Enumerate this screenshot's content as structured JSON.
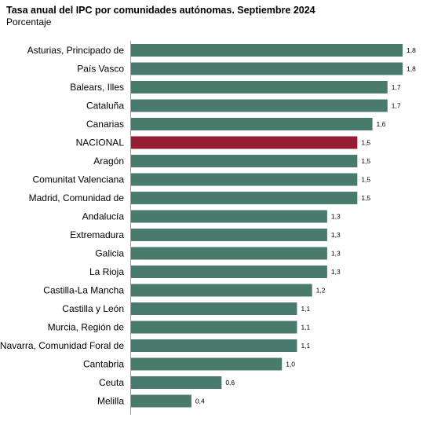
{
  "chart_data": {
    "type": "bar",
    "orientation": "horizontal",
    "title": "Tasa anual del IPC por comunidades autónomas. Septiembre 2024",
    "subtitle": "Porcentaje",
    "xlabel": "",
    "ylabel": "",
    "xlim": [
      0,
      1.8
    ],
    "grid": false,
    "legend": "none",
    "colors": {
      "default": "#487a6e",
      "highlight": "#951c34"
    },
    "highlight_category": "NACIONAL",
    "categories": [
      "Asturias, Principado de",
      "País Vasco",
      "Balears, Illes",
      "Cataluña",
      "Canarias",
      "NACIONAL",
      "Aragón",
      "Comunitat Valenciana",
      "Madrid, Comunidad de",
      "Andalucía",
      "Extremadura",
      "Galicia",
      "La Rioja",
      "Castilla-La Mancha",
      "Castilla y León",
      "Murcia, Región de",
      "Navarra, Comunidad Foral de",
      "Cantabria",
      "Ceuta",
      "Melilla"
    ],
    "values": [
      1.8,
      1.8,
      1.7,
      1.7,
      1.6,
      1.5,
      1.5,
      1.5,
      1.5,
      1.3,
      1.3,
      1.3,
      1.3,
      1.2,
      1.1,
      1.1,
      1.1,
      1.0,
      0.6,
      0.4
    ],
    "value_labels": [
      "1,8",
      "1,8",
      "1,7",
      "1,7",
      "1,6",
      "1,5",
      "1,5",
      "1,5",
      "1,5",
      "1,3",
      "1,3",
      "1,3",
      "1,3",
      "1,2",
      "1,1",
      "1,1",
      "1,1",
      "1,0",
      "0,6",
      "0,4"
    ]
  }
}
